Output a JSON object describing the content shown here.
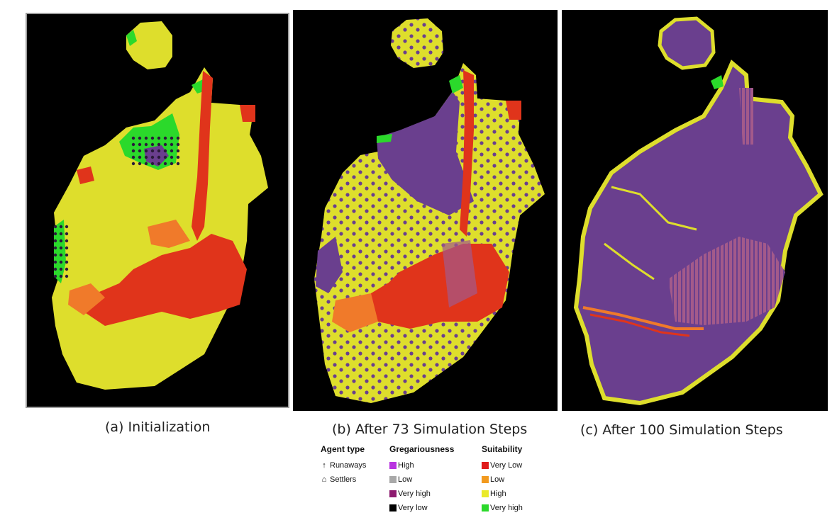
{
  "captions": {
    "a": "(a) Initialization",
    "b": "(b) After 73 Simulation Steps",
    "c": "(c) After 100 Simulation Steps"
  },
  "legend": {
    "agent_type": {
      "title": "Agent type",
      "items": [
        {
          "label": "Runaways",
          "icon": "runaway-arrow-icon",
          "glyph": "↑"
        },
        {
          "label": "Settlers",
          "icon": "settler-house-icon",
          "glyph": "⌂"
        }
      ]
    },
    "gregariousness": {
      "title": "Gregariousness",
      "items": [
        {
          "label": "High",
          "color": "#b833e0"
        },
        {
          "label": "Low",
          "color": "#a8a8a8"
        },
        {
          "label": "Very high",
          "color": "#8c1a6e"
        },
        {
          "label": "Very low",
          "color": "#000000"
        }
      ]
    },
    "suitability": {
      "title": "Suitability",
      "items": [
        {
          "label": "Very Low",
          "color": "#e01b1b"
        },
        {
          "label": "Low",
          "color": "#f29a1f"
        },
        {
          "label": "High",
          "color": "#eaea2a"
        },
        {
          "label": "Very high",
          "color": "#2bd92b"
        }
      ]
    }
  },
  "map_colors": {
    "background": "#000000",
    "very_low": "#e0341b",
    "low": "#f07a2a",
    "high": "#dede2c",
    "very_high": "#2bd92b",
    "occupied": "#6a3f8e",
    "mixed": "#a35a8a",
    "agent": "#2a1a3a"
  }
}
